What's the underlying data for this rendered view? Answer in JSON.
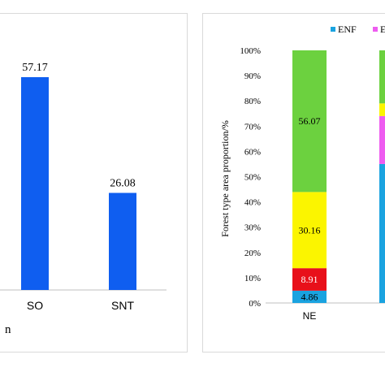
{
  "chart_data": [
    {
      "type": "bar",
      "categories": [
        "SO",
        "SNT"
      ],
      "values": [
        57.17,
        26.08
      ],
      "data_labels": [
        "57.17",
        "26.08"
      ],
      "partial_xlabel": "n",
      "ylim": [
        0,
        70
      ],
      "grid": false,
      "legend": "none",
      "bar_color": "#0f5ef0"
    },
    {
      "type": "bar",
      "stacked": true,
      "categories": [
        "NE"
      ],
      "ylabel": "Forest type area proportion/%",
      "ylim": [
        0,
        100
      ],
      "yticks": [
        "0%",
        "10%",
        "20%",
        "30%",
        "40%",
        "50%",
        "60%",
        "70%",
        "80%",
        "90%",
        "100%"
      ],
      "grid": false,
      "legend": "top-right",
      "legend_entries": [
        {
          "name": "ENF",
          "color": "#1aa3e0"
        },
        {
          "name": "EB",
          "color": "#ee5cf0"
        }
      ],
      "series": [
        {
          "name": "ENF",
          "color": "#1aa3e0",
          "values": [
            4.86
          ],
          "label": "4.86"
        },
        {
          "color": "#e8101a",
          "values": [
            8.91
          ],
          "label": "8.91"
        },
        {
          "color": "#fbf500",
          "values": [
            30.16
          ],
          "label": "30.16"
        },
        {
          "color": "#6cd13f",
          "values": [
            56.07
          ],
          "label": "56.07"
        }
      ],
      "partial_bar_segments": [
        {
          "color": "#1aa3e0",
          "values": [
            55
          ]
        },
        {
          "color": "#ee5cf0",
          "values": [
            19
          ]
        },
        {
          "color": "#fbf500",
          "values": [
            5
          ]
        },
        {
          "color": "#6cd13f",
          "values": [
            21
          ]
        }
      ]
    }
  ]
}
